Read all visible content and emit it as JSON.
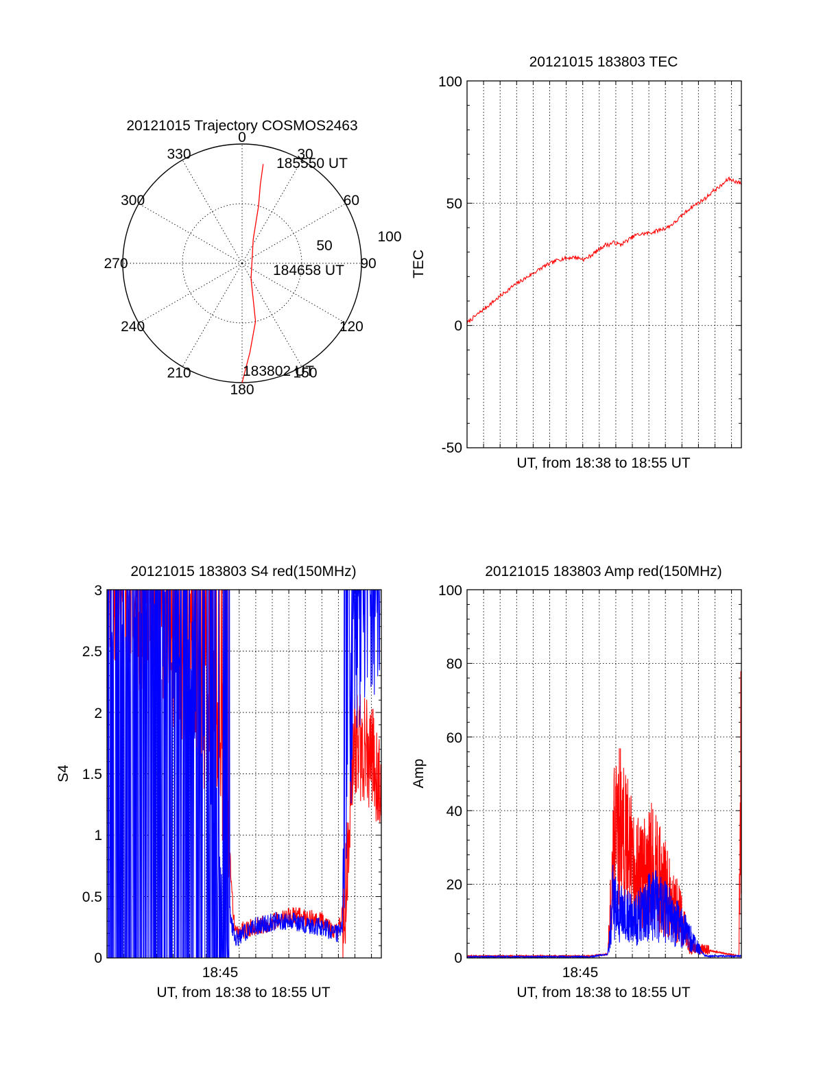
{
  "chart_data": [
    {
      "id": "trajectory",
      "type": "polar",
      "title": "20121015 Trajectory COSMOS2463",
      "angle_labels": [
        "0",
        "30",
        "60",
        "90",
        "120",
        "150",
        "180",
        "210",
        "240",
        "270",
        "300",
        "330"
      ],
      "radial_labels": [
        "50",
        "100"
      ],
      "rlim": [
        0,
        100
      ],
      "grid": true,
      "series": [
        {
          "color": "#ff0000",
          "points": [
            [
              180,
              100
            ],
            [
              175,
              75
            ],
            [
              167,
              50
            ],
            [
              150,
              15
            ],
            [
              25,
              22
            ],
            [
              16,
              50
            ],
            [
              13,
              68
            ],
            [
              12,
              85
            ]
          ]
        }
      ],
      "annotations": [
        "185550 UT",
        "184658 UT",
        "183802 UT"
      ]
    },
    {
      "id": "tec",
      "type": "line",
      "title": "20121015 183803 TEC",
      "xlabel": "UT, from 18:38 to 18:55 UT",
      "ylabel": "TEC",
      "xlim": [
        "18:38:03",
        "18:55:50"
      ],
      "ylim": [
        -50,
        100
      ],
      "yticks": [
        "100",
        "50",
        "0",
        "-50"
      ],
      "grid": true,
      "series": [
        {
          "color": "#ff0000",
          "x": [
            "18:38:03",
            "18:39:00",
            "18:40:00",
            "18:41:00",
            "18:42:00",
            "18:43:00",
            "18:44:00",
            "18:45:00",
            "18:45:40",
            "18:46:10",
            "18:47:00",
            "18:47:15",
            "18:47:30",
            "18:48:00",
            "18:49:00",
            "18:50:00",
            "18:51:00",
            "18:51:30",
            "18:52:00",
            "18:52:30",
            "18:53:00",
            "18:53:30",
            "18:54:00",
            "18:54:30",
            "18:55:00",
            "18:55:50"
          ],
          "values": [
            1,
            6,
            11,
            16,
            20,
            24,
            27,
            28,
            27,
            29,
            33,
            33,
            34,
            33,
            37,
            38,
            40,
            42,
            45,
            48,
            50,
            52,
            55,
            57,
            60,
            58
          ]
        }
      ]
    },
    {
      "id": "s4",
      "type": "line",
      "title": "20121015 183803 S4 red(150MHz)",
      "xlabel": "UT, from 18:38 to 18:55 UT",
      "ylabel": "S4",
      "xtick_labels": [
        "18:45"
      ],
      "xlim": [
        "18:38:03",
        "18:55:50"
      ],
      "ylim": [
        0,
        3
      ],
      "yticks": [
        "3",
        "2.5",
        "2",
        "1.5",
        "1",
        "0.5",
        "0"
      ],
      "grid": true,
      "series": [
        {
          "color": "#ff0000",
          "x": [
            "18:38:03",
            "18:41:00",
            "18:43:00",
            "18:44:00",
            "18:45:00",
            "18:45:40",
            "18:46:20",
            "18:47:30",
            "18:49:00",
            "18:50:00",
            "18:52:00",
            "18:53:00",
            "18:53:30",
            "18:54:00",
            "18:55:50"
          ],
          "values": [
            3,
            2.8,
            2.4,
            2.2,
            1.8,
            1.5,
            0.2,
            0.25,
            0.3,
            0.35,
            0.3,
            0.2,
            0.5,
            1.8,
            1.5
          ]
        },
        {
          "color": "#0000ff",
          "x": [
            "18:38:03",
            "18:41:00",
            "18:43:00",
            "18:44:00",
            "18:45:00",
            "18:45:40",
            "18:46:20",
            "18:47:30",
            "18:49:00",
            "18:50:00",
            "18:52:00",
            "18:53:00",
            "18:53:30",
            "18:54:00",
            "18:55:50"
          ],
          "values": [
            3,
            3,
            2.5,
            2,
            1,
            0.6,
            0.15,
            0.25,
            0.3,
            0.3,
            0.25,
            0.2,
            0.3,
            2.5,
            3
          ]
        }
      ]
    },
    {
      "id": "amp",
      "type": "line",
      "title": "20121015 183803 Amp red(150MHz)",
      "xlabel": "UT, from 18:38 to 18:55 UT",
      "ylabel": "Amp",
      "xtick_labels": [
        "18:45"
      ],
      "xlim": [
        "18:38:03",
        "18:55:50"
      ],
      "ylim": [
        0,
        100
      ],
      "yticks": [
        "100",
        "80",
        "60",
        "40",
        "20",
        "0"
      ],
      "grid": true,
      "series": [
        {
          "color": "#ff0000",
          "x": [
            "18:38:03",
            "18:46:00",
            "18:47:10",
            "18:47:30",
            "18:48:00",
            "18:49:00",
            "18:50:00",
            "18:51:00",
            "18:52:00",
            "18:52:30",
            "18:55:40",
            "18:55:50"
          ],
          "values": [
            0.5,
            0.5,
            1,
            30,
            35,
            22,
            25,
            18,
            10,
            3,
            0.5,
            60
          ]
        },
        {
          "color": "#0000ff",
          "x": [
            "18:38:03",
            "18:46:00",
            "18:47:10",
            "18:47:30",
            "18:48:00",
            "18:49:00",
            "18:50:00",
            "18:51:00",
            "18:52:00",
            "18:53:30",
            "18:55:50"
          ],
          "values": [
            0.3,
            0.3,
            1,
            15,
            12,
            10,
            15,
            12,
            8,
            0.5,
            0.5
          ]
        }
      ]
    }
  ]
}
